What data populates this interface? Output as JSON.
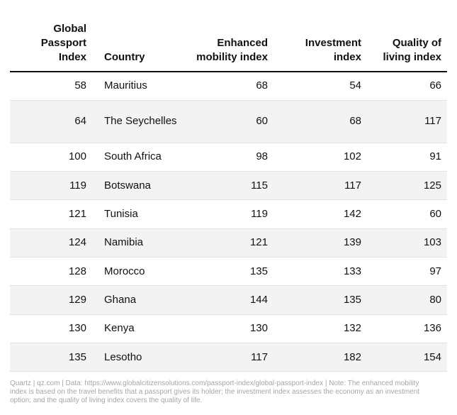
{
  "chart_data": {
    "type": "table",
    "columns": [
      "Global Passport Index",
      "Country",
      "Enhanced mobility index",
      "Investment index",
      "Quality of living index"
    ],
    "rows": [
      [
        "58",
        "Mauritius",
        "68",
        "54",
        "66"
      ],
      [
        "64",
        "The Seychelles",
        "60",
        "68",
        "117"
      ],
      [
        "100",
        "South Africa",
        "98",
        "102",
        "91"
      ],
      [
        "119",
        "Botswana",
        "115",
        "117",
        "125"
      ],
      [
        "121",
        "Tunisia",
        "119",
        "142",
        "60"
      ],
      [
        "124",
        "Namibia",
        "121",
        "139",
        "103"
      ],
      [
        "128",
        "Morocco",
        "135",
        "133",
        "97"
      ],
      [
        "129",
        "Ghana",
        "144",
        "135",
        "80"
      ],
      [
        "130",
        "Kenya",
        "130",
        "132",
        "136"
      ],
      [
        "135",
        "Lesotho",
        "117",
        "182",
        "154"
      ]
    ],
    "note": "Quartz | qz.com | Data: https://www.globalcitizensolutions.com/passport-index/global-passport-index | Note: The enhanced mobility index is based on the travel benefits that a passport gives its holder; the investment index assesses the economy as an investment option; and the quality of living index covers the quality of life."
  }
}
